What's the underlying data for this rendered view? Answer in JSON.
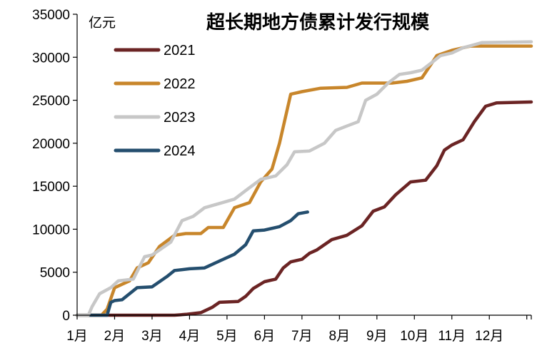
{
  "chart_data": {
    "type": "line",
    "title": "超长期地方债累计发行规模",
    "ylabel": "亿元",
    "xlabel": "",
    "ylim": [
      0,
      35000
    ],
    "yticks": [
      0,
      5000,
      10000,
      15000,
      20000,
      25000,
      30000,
      35000
    ],
    "xlim": [
      1,
      13.12
    ],
    "xticks": [
      {
        "label": "1月",
        "x": 1
      },
      {
        "label": "2月",
        "x": 2
      },
      {
        "label": "3月",
        "x": 3
      },
      {
        "label": "4月",
        "x": 4
      },
      {
        "label": "5月",
        "x": 5
      },
      {
        "label": "6月",
        "x": 6
      },
      {
        "label": "7月",
        "x": 7
      },
      {
        "label": "8月",
        "x": 8
      },
      {
        "label": "9月",
        "x": 9
      },
      {
        "label": "10月",
        "x": 10
      },
      {
        "label": "11月",
        "x": 11
      },
      {
        "label": "12月",
        "x": 12
      }
    ],
    "grid": false,
    "legend_position": "top-left",
    "series": [
      {
        "name": "2021",
        "color": "#6B2424",
        "points": [
          [
            1,
            0
          ],
          [
            3.6,
            0
          ],
          [
            3.9,
            100
          ],
          [
            4.3,
            300
          ],
          [
            4.6,
            900
          ],
          [
            4.8,
            1500
          ],
          [
            5.3,
            1600
          ],
          [
            5.5,
            2200
          ],
          [
            5.7,
            3100
          ],
          [
            6.0,
            3900
          ],
          [
            6.3,
            4200
          ],
          [
            6.5,
            5500
          ],
          [
            6.7,
            6200
          ],
          [
            7.0,
            6500
          ],
          [
            7.2,
            7200
          ],
          [
            7.4,
            7600
          ],
          [
            7.8,
            8800
          ],
          [
            8.2,
            9300
          ],
          [
            8.6,
            10400
          ],
          [
            8.9,
            12100
          ],
          [
            9.2,
            12600
          ],
          [
            9.5,
            14000
          ],
          [
            9.9,
            15500
          ],
          [
            10.3,
            15700
          ],
          [
            10.6,
            17400
          ],
          [
            10.8,
            19200
          ],
          [
            11.0,
            19800
          ],
          [
            11.3,
            20400
          ],
          [
            11.6,
            22500
          ],
          [
            11.9,
            24300
          ],
          [
            12.2,
            24700
          ],
          [
            13.12,
            24800
          ]
        ]
      },
      {
        "name": "2022",
        "color": "#C8862B",
        "points": [
          [
            1,
            0
          ],
          [
            1.65,
            0
          ],
          [
            1.8,
            700
          ],
          [
            2.0,
            3200
          ],
          [
            2.4,
            4000
          ],
          [
            2.6,
            5500
          ],
          [
            2.9,
            6100
          ],
          [
            3.2,
            8000
          ],
          [
            3.6,
            9300
          ],
          [
            3.9,
            9500
          ],
          [
            4.3,
            9500
          ],
          [
            4.5,
            10200
          ],
          [
            4.9,
            10200
          ],
          [
            5.2,
            12500
          ],
          [
            5.6,
            13100
          ],
          [
            5.9,
            15500
          ],
          [
            6.2,
            17000
          ],
          [
            6.4,
            20000
          ],
          [
            6.7,
            25700
          ],
          [
            7.0,
            26000
          ],
          [
            7.5,
            26400
          ],
          [
            8.2,
            26500
          ],
          [
            8.6,
            27000
          ],
          [
            9.4,
            27000
          ],
          [
            9.8,
            27200
          ],
          [
            10.2,
            27600
          ],
          [
            10.6,
            30200
          ],
          [
            11.0,
            30800
          ],
          [
            11.5,
            31300
          ],
          [
            13.12,
            31300
          ]
        ]
      },
      {
        "name": "2023",
        "color": "#C7C7C7",
        "points": [
          [
            1,
            0
          ],
          [
            1.3,
            0
          ],
          [
            1.4,
            1000
          ],
          [
            1.6,
            2500
          ],
          [
            1.9,
            3200
          ],
          [
            2.1,
            4000
          ],
          [
            2.5,
            4200
          ],
          [
            2.8,
            6800
          ],
          [
            3.0,
            7000
          ],
          [
            3.5,
            8500
          ],
          [
            3.8,
            11000
          ],
          [
            4.1,
            11500
          ],
          [
            4.4,
            12500
          ],
          [
            4.8,
            13000
          ],
          [
            5.2,
            13500
          ],
          [
            5.5,
            14500
          ],
          [
            5.9,
            15800
          ],
          [
            6.3,
            16200
          ],
          [
            6.6,
            17500
          ],
          [
            6.8,
            19000
          ],
          [
            7.2,
            19100
          ],
          [
            7.6,
            20000
          ],
          [
            7.9,
            21500
          ],
          [
            8.2,
            22000
          ],
          [
            8.5,
            22500
          ],
          [
            8.7,
            25000
          ],
          [
            9.0,
            25700
          ],
          [
            9.3,
            27000
          ],
          [
            9.6,
            28000
          ],
          [
            9.9,
            28200
          ],
          [
            10.2,
            28500
          ],
          [
            10.5,
            29500
          ],
          [
            10.7,
            30200
          ],
          [
            11.0,
            30500
          ],
          [
            11.3,
            31100
          ],
          [
            11.8,
            31700
          ],
          [
            13.12,
            31800
          ]
        ]
      },
      {
        "name": "2024",
        "color": "#244E6E",
        "points": [
          [
            1,
            0
          ],
          [
            1.8,
            0
          ],
          [
            1.9,
            1500
          ],
          [
            2.0,
            1700
          ],
          [
            2.2,
            1800
          ],
          [
            2.6,
            3200
          ],
          [
            3.0,
            3300
          ],
          [
            3.4,
            4500
          ],
          [
            3.6,
            5200
          ],
          [
            4.0,
            5400
          ],
          [
            4.4,
            5500
          ],
          [
            4.8,
            6300
          ],
          [
            5.2,
            7100
          ],
          [
            5.5,
            8200
          ],
          [
            5.7,
            9800
          ],
          [
            6.0,
            9900
          ],
          [
            6.4,
            10300
          ],
          [
            6.7,
            11000
          ],
          [
            6.9,
            11800
          ],
          [
            7.15,
            12000
          ]
        ]
      }
    ]
  }
}
